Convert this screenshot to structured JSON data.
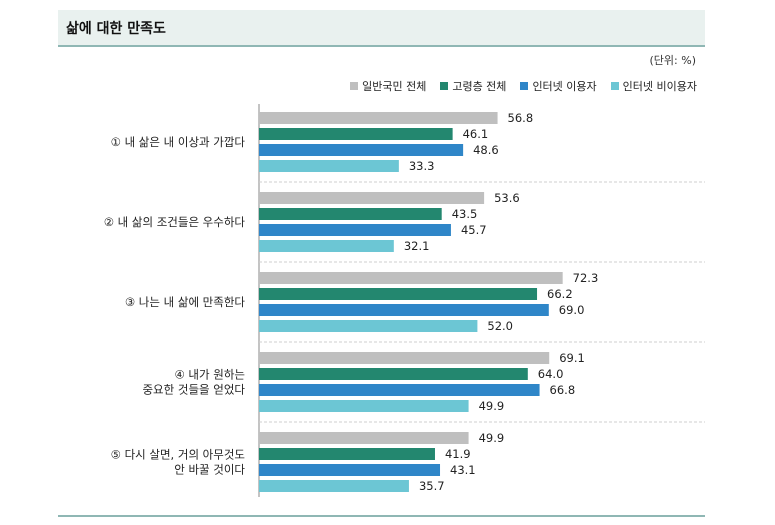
{
  "title": "삶에 대한 만족도",
  "unit": "(단위: %)",
  "colors": {
    "general": "#bfbfbf",
    "elderly": "#23876f",
    "internet_user": "#2f86c8",
    "internet_nonuser": "#6cc6d4"
  },
  "chart_data": {
    "type": "bar",
    "orientation": "horizontal",
    "xlim": [
      0,
      100
    ],
    "legend_position": "top-right",
    "categories": [
      [
        "① 내 삶은 내 이상과 가깝다"
      ],
      [
        "② 내 삶의 조건들은 우수하다"
      ],
      [
        "③ 나는 내 삶에 만족한다"
      ],
      [
        "④ 내가 원하는",
        "중요한 것들을 얻었다"
      ],
      [
        "⑤ 다시 살면, 거의 아무것도",
        "안 바꿀 것이다"
      ]
    ],
    "series": [
      {
        "name": "일반국민 전체",
        "color_key": "general",
        "values": [
          56.8,
          53.6,
          72.3,
          69.1,
          49.9
        ]
      },
      {
        "name": "고령층 전체",
        "color_key": "elderly",
        "values": [
          46.1,
          43.5,
          66.2,
          64.0,
          41.9
        ]
      },
      {
        "name": "인터넷 이용자",
        "color_key": "internet_user",
        "values": [
          48.6,
          45.7,
          69.0,
          66.8,
          43.1
        ]
      },
      {
        "name": "인터넷 비이용자",
        "color_key": "internet_nonuser",
        "values": [
          33.3,
          32.1,
          52.0,
          49.9,
          35.7
        ]
      }
    ]
  }
}
